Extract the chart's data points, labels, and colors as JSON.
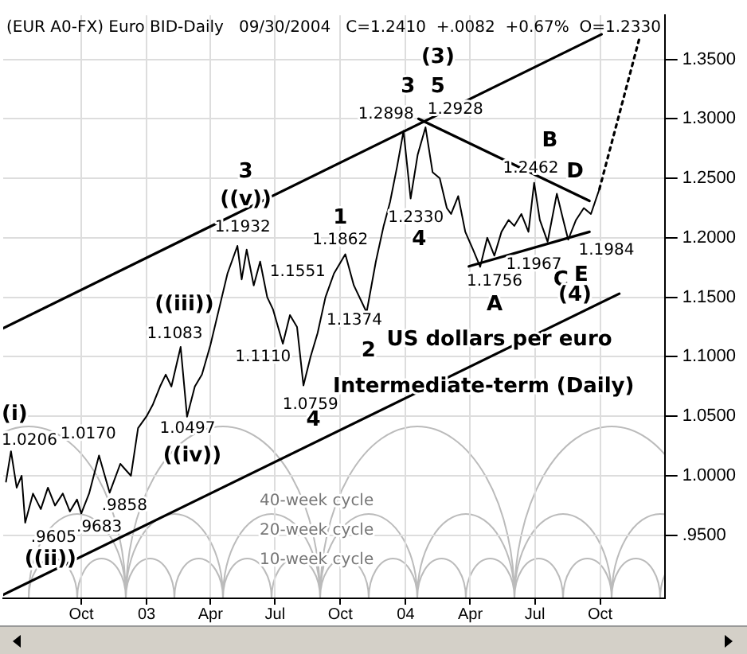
{
  "chart_data": {
    "type": "line",
    "title": "(EUR A0-FX) Euro BID-Daily   09/30/2004   C=1.2410  +.0082  +0.67%  O=1.2330",
    "xlim": [
      "2002-06-13",
      "2004-12-31"
    ],
    "xticks": [
      {
        "value": "2002-10-01",
        "label": "Oct"
      },
      {
        "value": "2003-01-01",
        "label": "03"
      },
      {
        "value": "2003-04-01",
        "label": "Apr"
      },
      {
        "value": "2003-07-01",
        "label": "Jul"
      },
      {
        "value": "2003-10-01",
        "label": "Oct"
      },
      {
        "value": "2004-01-01",
        "label": "04"
      },
      {
        "value": "2004-04-01",
        "label": "Apr"
      },
      {
        "value": "2004-07-01",
        "label": "Jul"
      },
      {
        "value": "2004-10-01",
        "label": "Oct"
      }
    ],
    "ylim": [
      0.897,
      1.387
    ],
    "yticks": [
      {
        "value": 0.95,
        "label": ".9500"
      },
      {
        "value": 1.0,
        "label": "1.0000"
      },
      {
        "value": 1.05,
        "label": "1.0500"
      },
      {
        "value": 1.1,
        "label": "1.1000"
      },
      {
        "value": 1.15,
        "label": "1.1500"
      },
      {
        "value": 1.2,
        "label": "1.2000"
      },
      {
        "value": 1.25,
        "label": "1.2500"
      },
      {
        "value": 1.3,
        "label": "1.3000"
      },
      {
        "value": 1.35,
        "label": "1.3500"
      }
    ],
    "grid": true,
    "series": [
      {
        "color": "#000000",
        "x": [
          "2002-06-17",
          "2002-06-24",
          "2002-07-02",
          "2002-07-09",
          "2002-07-14",
          "2002-07-25",
          "2002-08-05",
          "2002-08-15",
          "2002-08-25",
          "2002-09-05",
          "2002-09-15",
          "2002-09-25",
          "2002-10-01",
          "2002-10-12",
          "2002-10-26",
          "2002-11-10",
          "2002-11-25",
          "2002-12-10",
          "2002-12-20",
          "2003-01-01",
          "2003-01-10",
          "2003-01-20",
          "2003-01-28",
          "2003-02-05",
          "2003-02-18",
          "2003-02-27",
          "2003-03-10",
          "2003-03-20",
          "2003-04-01",
          "2003-04-15",
          "2003-04-25",
          "2003-05-09",
          "2003-05-15",
          "2003-05-22",
          "2003-06-01",
          "2003-06-10",
          "2003-06-20",
          "2003-06-28",
          "2003-07-12",
          "2003-07-22",
          "2003-08-01",
          "2003-08-10",
          "2003-08-20",
          "2003-08-30",
          "2003-09-10",
          "2003-09-22",
          "2003-10-08",
          "2003-10-20",
          "2003-11-07",
          "2003-11-20",
          "2003-12-01",
          "2003-12-10",
          "2003-12-20",
          "2003-12-29",
          "2004-01-08",
          "2004-01-18",
          "2004-01-29",
          "2004-02-08",
          "2004-02-18",
          "2004-02-28",
          "2004-03-05",
          "2004-03-15",
          "2004-03-25",
          "2004-04-05",
          "2004-04-15",
          "2004-04-25",
          "2004-05-05",
          "2004-05-15",
          "2004-05-25",
          "2004-06-02",
          "2004-06-12",
          "2004-06-22",
          "2004-06-30",
          "2004-07-08",
          "2004-07-19",
          "2004-08-01",
          "2004-08-10",
          "2004-08-17",
          "2004-08-28",
          "2004-09-08",
          "2004-09-18",
          "2004-09-30"
        ],
        "values": [
          0.995,
          1.0206,
          0.99,
          1.0,
          0.9605,
          0.985,
          0.972,
          0.99,
          0.975,
          0.985,
          0.97,
          0.98,
          0.9683,
          0.985,
          1.017,
          0.9858,
          1.01,
          1.0,
          1.04,
          1.05,
          1.06,
          1.075,
          1.085,
          1.075,
          1.1083,
          1.0497,
          1.075,
          1.085,
          1.11,
          1.145,
          1.17,
          1.1932,
          1.165,
          1.19,
          1.16,
          1.18,
          1.15,
          1.14,
          1.111,
          1.135,
          1.125,
          1.0759,
          1.1,
          1.12,
          1.15,
          1.17,
          1.1862,
          1.16,
          1.1374,
          1.18,
          1.21,
          1.23,
          1.26,
          1.2898,
          1.233,
          1.27,
          1.2928,
          1.255,
          1.25,
          1.225,
          1.22,
          1.235,
          1.205,
          1.19,
          1.1756,
          1.2,
          1.185,
          1.205,
          1.215,
          1.21,
          1.22,
          1.205,
          1.2462,
          1.215,
          1.1967,
          1.237,
          1.215,
          1.1984,
          1.215,
          1.225,
          1.22,
          1.241
        ]
      },
      {
        "color": "#000000",
        "x": [
          "2002-06-13",
          "2004-10-03"
        ],
        "values": [
          1.124,
          1.371
        ]
      },
      {
        "color": "#000000",
        "x": [
          "2002-06-13",
          "2004-10-28"
        ],
        "values": [
          0.9,
          1.153
        ]
      },
      {
        "color": "#000000",
        "x": [
          "2004-01-19",
          "2004-09-16"
        ],
        "values": [
          1.3,
          1.231
        ]
      },
      {
        "color": "#000000",
        "x": [
          "2004-03-30",
          "2004-09-16"
        ],
        "values": [
          1.176,
          1.205
        ]
      },
      {
        "color": "#000000",
        "line_style": "dotted",
        "x": [
          "2004-09-30",
          "2004-11-25"
        ],
        "values": [
          1.241,
          1.367
        ]
      }
    ],
    "annotations": [
      "3",
      "((v))",
      "1.1932",
      "1",
      "1.1862",
      "1.1551",
      "((iii))",
      "1.1083",
      "1.1110",
      "1.1374",
      "2",
      "1.0759",
      "4",
      "1.0170",
      "1.0497",
      "((iv))",
      "(i)",
      "1.0206",
      ".9858",
      ".9683",
      ".9605",
      "((ii))",
      "3",
      "(3)",
      "5",
      "1.2898",
      "1.2928",
      "1.2330",
      "4",
      "B",
      "1.2462",
      "D",
      "1.1967",
      "1.1984",
      "1.1756",
      "A",
      "C",
      "E",
      "(4)",
      "US dollars per euro",
      "Intermediate-term (Daily)",
      "40-week cycle",
      "20-week cycle",
      "10-week cycle"
    ]
  }
}
